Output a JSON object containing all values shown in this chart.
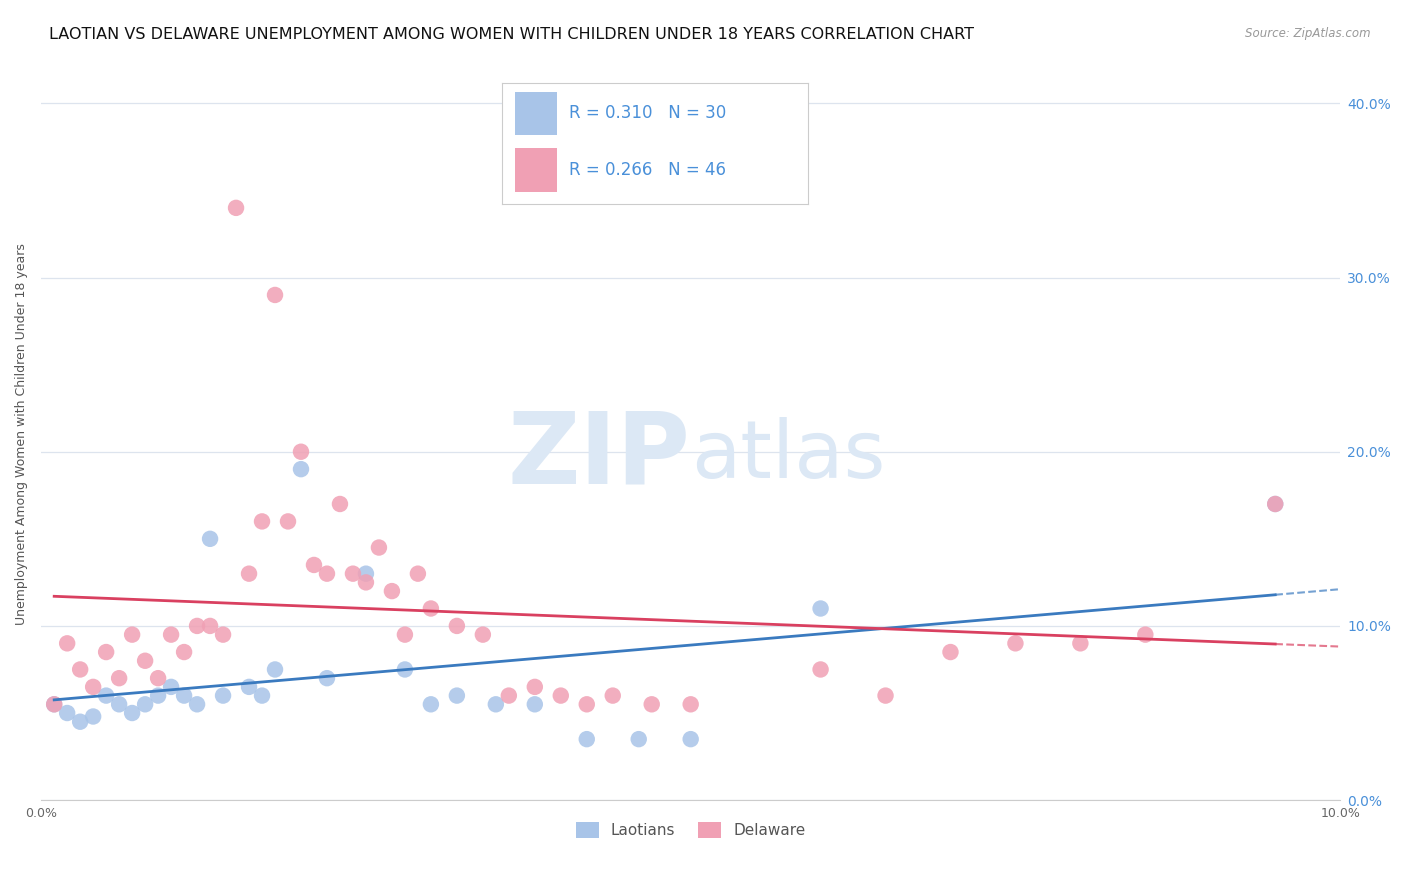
{
  "title": "LAOTIAN VS DELAWARE UNEMPLOYMENT AMONG WOMEN WITH CHILDREN UNDER 18 YEARS CORRELATION CHART",
  "source": "Source: ZipAtlas.com",
  "ylabel": "Unemployment Among Women with Children Under 18 years",
  "xlim": [
    0.0,
    0.1
  ],
  "ylim": [
    0.0,
    0.42
  ],
  "xticks": [
    0.0,
    0.02,
    0.04,
    0.06,
    0.08,
    0.1
  ],
  "yticks": [
    0.0,
    0.1,
    0.2,
    0.3,
    0.4
  ],
  "xticklabels": [
    "0.0%",
    "",
    "",
    "",
    "",
    "10.0%"
  ],
  "yticklabels": [
    "0.0%",
    "10.0%",
    "20.0%",
    "30.0%",
    "40.0%"
  ],
  "laotian_R": 0.31,
  "laotian_N": 30,
  "delaware_R": 0.266,
  "delaware_N": 46,
  "laotian_color": "#a8c4e8",
  "delaware_color": "#f0a0b4",
  "laotian_line_color": "#3a7abf",
  "delaware_line_color": "#d94060",
  "watermark_color": "#dce8f5",
  "laotian_points": [
    [
      0.001,
      0.055
    ],
    [
      0.002,
      0.05
    ],
    [
      0.003,
      0.045
    ],
    [
      0.004,
      0.048
    ],
    [
      0.005,
      0.06
    ],
    [
      0.006,
      0.055
    ],
    [
      0.007,
      0.05
    ],
    [
      0.008,
      0.055
    ],
    [
      0.009,
      0.06
    ],
    [
      0.01,
      0.065
    ],
    [
      0.011,
      0.06
    ],
    [
      0.012,
      0.055
    ],
    [
      0.013,
      0.15
    ],
    [
      0.014,
      0.06
    ],
    [
      0.016,
      0.065
    ],
    [
      0.017,
      0.06
    ],
    [
      0.018,
      0.075
    ],
    [
      0.02,
      0.19
    ],
    [
      0.022,
      0.07
    ],
    [
      0.025,
      0.13
    ],
    [
      0.028,
      0.075
    ],
    [
      0.03,
      0.055
    ],
    [
      0.032,
      0.06
    ],
    [
      0.035,
      0.055
    ],
    [
      0.038,
      0.055
    ],
    [
      0.042,
      0.035
    ],
    [
      0.046,
      0.035
    ],
    [
      0.05,
      0.035
    ],
    [
      0.06,
      0.11
    ],
    [
      0.095,
      0.17
    ]
  ],
  "delaware_points": [
    [
      0.001,
      0.055
    ],
    [
      0.002,
      0.09
    ],
    [
      0.003,
      0.075
    ],
    [
      0.004,
      0.065
    ],
    [
      0.005,
      0.085
    ],
    [
      0.006,
      0.07
    ],
    [
      0.007,
      0.095
    ],
    [
      0.008,
      0.08
    ],
    [
      0.009,
      0.07
    ],
    [
      0.01,
      0.095
    ],
    [
      0.011,
      0.085
    ],
    [
      0.012,
      0.1
    ],
    [
      0.013,
      0.1
    ],
    [
      0.014,
      0.095
    ],
    [
      0.015,
      0.34
    ],
    [
      0.016,
      0.13
    ],
    [
      0.017,
      0.16
    ],
    [
      0.018,
      0.29
    ],
    [
      0.019,
      0.16
    ],
    [
      0.02,
      0.2
    ],
    [
      0.021,
      0.135
    ],
    [
      0.022,
      0.13
    ],
    [
      0.023,
      0.17
    ],
    [
      0.024,
      0.13
    ],
    [
      0.025,
      0.125
    ],
    [
      0.026,
      0.145
    ],
    [
      0.027,
      0.12
    ],
    [
      0.028,
      0.095
    ],
    [
      0.029,
      0.13
    ],
    [
      0.03,
      0.11
    ],
    [
      0.032,
      0.1
    ],
    [
      0.034,
      0.095
    ],
    [
      0.036,
      0.06
    ],
    [
      0.038,
      0.065
    ],
    [
      0.04,
      0.06
    ],
    [
      0.042,
      0.055
    ],
    [
      0.044,
      0.06
    ],
    [
      0.047,
      0.055
    ],
    [
      0.05,
      0.055
    ],
    [
      0.06,
      0.075
    ],
    [
      0.065,
      0.06
    ],
    [
      0.07,
      0.085
    ],
    [
      0.075,
      0.09
    ],
    [
      0.08,
      0.09
    ],
    [
      0.085,
      0.095
    ],
    [
      0.095,
      0.17
    ]
  ],
  "background_color": "#ffffff",
  "grid_color": "#dde4ee",
  "title_fontsize": 11.5,
  "axis_label_fontsize": 9,
  "tick_fontsize": 9,
  "legend_fontsize": 12,
  "right_ytick_color": "#4a90d9"
}
